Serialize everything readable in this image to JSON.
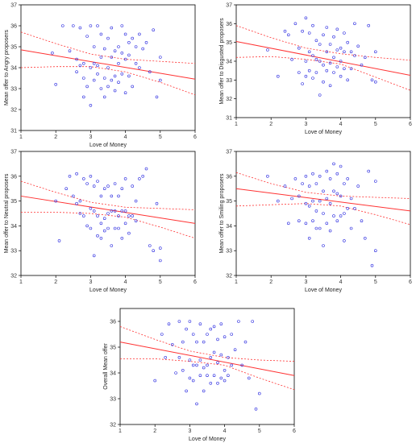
{
  "colors": {
    "points": "#2a2ae0",
    "fit_line": "#ff3333",
    "frame": "#000000",
    "background": "#ffffff"
  },
  "chart_data": [
    {
      "type": "scatter",
      "title": "",
      "xlabel": "Love of Money",
      "ylabel": "Mean offer to Angry proposers",
      "xlim": [
        1,
        6
      ],
      "ylim": [
        31,
        37
      ],
      "xticks": [
        "1",
        "2",
        "3",
        "4",
        "5",
        "6"
      ],
      "yticks": [
        "31",
        "32",
        "33",
        "34",
        "35",
        "36",
        "37"
      ],
      "grid": false,
      "fit": {
        "x": [
          1,
          6
        ],
        "y": [
          34.85,
          33.45
        ]
      },
      "ci_upper": {
        "x": [
          1,
          2,
          3,
          4,
          5,
          6
        ],
        "y": [
          35.7,
          35.15,
          34.65,
          34.4,
          34.3,
          34.2
        ]
      },
      "ci_lower": {
        "x": [
          1,
          2,
          3,
          4,
          5,
          6
        ],
        "y": [
          34.0,
          34.05,
          34.05,
          33.8,
          33.3,
          32.7
        ]
      },
      "points": {
        "x": [
          1.9,
          2.0,
          2.2,
          2.4,
          2.5,
          2.6,
          2.6,
          2.7,
          2.7,
          2.8,
          2.8,
          2.8,
          2.9,
          2.9,
          3.0,
          3.0,
          3.0,
          3.1,
          3.1,
          3.1,
          3.2,
          3.2,
          3.2,
          3.3,
          3.3,
          3.3,
          3.4,
          3.4,
          3.4,
          3.5,
          3.5,
          3.5,
          3.6,
          3.6,
          3.6,
          3.7,
          3.7,
          3.7,
          3.8,
          3.8,
          3.8,
          3.9,
          3.9,
          3.9,
          4.0,
          4.0,
          4.0,
          4.1,
          4.1,
          4.1,
          4.2,
          4.2,
          4.3,
          4.3,
          4.4,
          4.4,
          4.5,
          4.6,
          4.7,
          4.8,
          4.9,
          5.0,
          5.0
        ],
        "y": [
          34.7,
          33.2,
          36.0,
          34.8,
          36.0,
          34.4,
          33.8,
          35.9,
          34.1,
          32.6,
          33.5,
          34.2,
          35.5,
          33.1,
          36.0,
          34.0,
          32.2,
          35.0,
          34.2,
          33.4,
          36.0,
          33.7,
          34.1,
          35.6,
          33.0,
          34.5,
          34.9,
          33.5,
          32.6,
          35.4,
          34.0,
          33.1,
          35.9,
          34.5,
          33.4,
          34.8,
          33.6,
          32.9,
          35.0,
          34.2,
          33.3,
          36.0,
          34.7,
          33.7,
          35.6,
          34.4,
          32.8,
          35.2,
          33.6,
          34.6,
          35.4,
          33.1,
          35.0,
          34.2,
          35.6,
          34.0,
          34.9,
          35.2,
          33.8,
          35.8,
          32.6,
          33.4,
          34.5
        ]
      }
    },
    {
      "type": "scatter",
      "title": "",
      "xlabel": "Love of Money",
      "ylabel": "Mean offer to Disgusted proposers",
      "xlim": [
        1,
        6
      ],
      "ylim": [
        31,
        37
      ],
      "xticks": [
        "1",
        "2",
        "3",
        "4",
        "5",
        "6"
      ],
      "yticks": [
        "31",
        "32",
        "33",
        "34",
        "35",
        "36",
        "37"
      ],
      "grid": false,
      "fit": {
        "x": [
          1,
          6
        ],
        "y": [
          35.05,
          33.25
        ]
      },
      "ci_upper": {
        "x": [
          1,
          2,
          3,
          4,
          5,
          6
        ],
        "y": [
          35.9,
          35.25,
          34.7,
          34.4,
          34.2,
          34.05
        ]
      },
      "ci_lower": {
        "x": [
          1,
          2,
          3,
          4,
          5,
          6
        ],
        "y": [
          34.2,
          34.25,
          34.1,
          33.85,
          33.15,
          32.45
        ]
      },
      "points": {
        "x": [
          1.9,
          2.2,
          2.4,
          2.5,
          2.6,
          2.7,
          2.8,
          2.8,
          2.9,
          2.9,
          3.0,
          3.0,
          3.0,
          3.1,
          3.1,
          3.1,
          3.2,
          3.2,
          3.2,
          3.3,
          3.3,
          3.3,
          3.4,
          3.4,
          3.4,
          3.5,
          3.5,
          3.5,
          3.6,
          3.6,
          3.6,
          3.7,
          3.7,
          3.7,
          3.8,
          3.8,
          3.8,
          3.9,
          3.9,
          3.9,
          4.0,
          4.0,
          4.0,
          4.1,
          4.1,
          4.1,
          4.2,
          4.2,
          4.3,
          4.3,
          4.4,
          4.4,
          4.5,
          4.6,
          4.7,
          4.8,
          4.9,
          5.0,
          5.0
        ],
        "y": [
          34.6,
          33.2,
          35.6,
          35.4,
          34.1,
          36.0,
          33.4,
          34.7,
          35.6,
          32.8,
          36.3,
          34.0,
          33.2,
          35.5,
          34.5,
          33.5,
          35.9,
          34.3,
          33.1,
          35.1,
          34.1,
          33.4,
          34.9,
          34.0,
          32.2,
          35.4,
          33.8,
          32.9,
          35.8,
          34.5,
          33.5,
          34.9,
          33.9,
          32.7,
          35.3,
          34.2,
          33.4,
          35.7,
          34.6,
          33.7,
          34.7,
          34.0,
          33.2,
          35.5,
          33.6,
          34.5,
          35.0,
          33.0,
          34.5,
          33.6,
          36.0,
          34.3,
          34.8,
          33.8,
          34.2,
          35.9,
          33.0,
          32.9,
          34.5
        ]
      }
    },
    {
      "type": "scatter",
      "title": "",
      "xlabel": "Love of Money",
      "ylabel": "Mean offer to Neutral proposers",
      "xlim": [
        1,
        6
      ],
      "ylim": [
        32,
        37
      ],
      "xticks": [
        "1",
        "2",
        "3",
        "4",
        "5",
        "6"
      ],
      "yticks": [
        "32",
        "33",
        "34",
        "35",
        "36",
        "37"
      ],
      "grid": false,
      "fit": {
        "x": [
          1,
          6
        ],
        "y": [
          35.2,
          34.1
        ]
      },
      "ci_upper": {
        "x": [
          1,
          2,
          3,
          4,
          5,
          6
        ],
        "y": [
          35.8,
          35.35,
          34.95,
          34.75,
          34.7,
          34.65
        ]
      },
      "ci_lower": {
        "x": [
          1,
          2,
          3,
          4,
          5,
          6
        ],
        "y": [
          34.55,
          34.55,
          34.5,
          34.35,
          33.95,
          33.5
        ]
      },
      "points": {
        "x": [
          2.0,
          2.1,
          2.3,
          2.4,
          2.5,
          2.6,
          2.6,
          2.7,
          2.7,
          2.8,
          2.8,
          2.9,
          2.9,
          3.0,
          3.0,
          3.0,
          3.1,
          3.1,
          3.1,
          3.2,
          3.2,
          3.2,
          3.3,
          3.3,
          3.3,
          3.4,
          3.4,
          3.4,
          3.5,
          3.5,
          3.5,
          3.6,
          3.6,
          3.6,
          3.7,
          3.7,
          3.7,
          3.8,
          3.8,
          3.8,
          3.9,
          3.9,
          3.9,
          4.0,
          4.0,
          4.0,
          4.1,
          4.1,
          4.2,
          4.2,
          4.3,
          4.3,
          4.4,
          4.5,
          4.6,
          4.7,
          4.8,
          4.9,
          5.0,
          5.0
        ],
        "y": [
          35.0,
          33.4,
          35.5,
          36.0,
          35.2,
          36.1,
          34.9,
          35.0,
          34.5,
          35.9,
          34.4,
          35.7,
          34.0,
          36.0,
          34.7,
          33.9,
          35.6,
          34.6,
          32.8,
          35.8,
          34.4,
          33.6,
          35.2,
          34.1,
          33.5,
          35.5,
          34.3,
          33.8,
          35.6,
          34.5,
          33.9,
          35.2,
          34.6,
          33.2,
          35.7,
          34.6,
          33.9,
          35.2,
          34.4,
          33.9,
          35.5,
          34.6,
          33.5,
          35.9,
          34.6,
          34.1,
          34.4,
          33.7,
          35.6,
          34.4,
          35.0,
          34.2,
          35.9,
          36.0,
          36.3,
          33.2,
          33.0,
          34.9,
          32.6,
          33.1
        ]
      }
    },
    {
      "type": "scatter",
      "title": "",
      "xlabel": "Love of Money",
      "ylabel": "Mean offer to Smiling proposers",
      "xlim": [
        1,
        6
      ],
      "ylim": [
        32,
        37
      ],
      "xticks": [
        "1",
        "2",
        "3",
        "4",
        "5",
        "6"
      ],
      "yticks": [
        "32",
        "33",
        "34",
        "35",
        "36",
        "37"
      ],
      "grid": false,
      "fit": {
        "x": [
          1,
          6
        ],
        "y": [
          35.5,
          34.6
        ]
      },
      "ci_upper": {
        "x": [
          1,
          2,
          3,
          4,
          5,
          6
        ],
        "y": [
          36.15,
          35.7,
          35.35,
          35.2,
          35.15,
          35.1
        ]
      },
      "ci_lower": {
        "x": [
          1,
          2,
          3,
          4,
          5,
          6
        ],
        "y": [
          34.8,
          34.85,
          34.9,
          34.8,
          34.45,
          34.05
        ]
      },
      "points": {
        "x": [
          1.9,
          2.2,
          2.4,
          2.5,
          2.6,
          2.7,
          2.8,
          2.8,
          2.9,
          3.0,
          3.0,
          3.0,
          3.1,
          3.1,
          3.1,
          3.2,
          3.2,
          3.2,
          3.3,
          3.3,
          3.3,
          3.4,
          3.4,
          3.4,
          3.5,
          3.5,
          3.5,
          3.6,
          3.6,
          3.6,
          3.7,
          3.7,
          3.7,
          3.8,
          3.8,
          3.8,
          3.9,
          3.9,
          3.9,
          4.0,
          4.0,
          4.0,
          4.1,
          4.1,
          4.1,
          4.2,
          4.2,
          4.3,
          4.3,
          4.4,
          4.5,
          4.6,
          4.7,
          4.8,
          4.9,
          5.0,
          5.0
        ],
        "y": [
          36.0,
          35.0,
          35.6,
          34.1,
          35.1,
          35.9,
          34.2,
          35.2,
          35.7,
          36.0,
          34.9,
          34.1,
          35.6,
          34.8,
          33.5,
          36.1,
          35.0,
          34.2,
          35.7,
          34.6,
          33.9,
          36.0,
          35.0,
          33.9,
          35.4,
          34.5,
          33.2,
          36.2,
          35.1,
          34.1,
          35.9,
          34.9,
          33.8,
          36.5,
          35.4,
          34.4,
          36.1,
          35.3,
          34.2,
          36.4,
          35.2,
          34.4,
          35.7,
          34.5,
          33.4,
          35.9,
          34.7,
          35.1,
          33.9,
          34.7,
          35.6,
          34.2,
          33.5,
          36.2,
          32.4,
          33.0,
          35.8
        ]
      }
    },
    {
      "type": "scatter",
      "title": "",
      "xlabel": "Love of Money",
      "ylabel": "Overall Mean offer",
      "xlim": [
        1,
        6
      ],
      "ylim": [
        32,
        36.5
      ],
      "xticks": [
        "1",
        "2",
        "3",
        "4",
        "5",
        "6"
      ],
      "yticks": [
        "32",
        "33",
        "34",
        "35",
        "36"
      ],
      "grid": false,
      "fit": {
        "x": [
          1,
          6
        ],
        "y": [
          35.2,
          33.9
        ]
      },
      "ci_upper": {
        "x": [
          1,
          2,
          3,
          4,
          5,
          6
        ],
        "y": [
          35.8,
          35.3,
          34.85,
          34.6,
          34.5,
          34.45
        ]
      },
      "ci_lower": {
        "x": [
          1,
          2,
          3,
          4,
          5,
          6
        ],
        "y": [
          34.55,
          34.55,
          34.45,
          34.3,
          33.8,
          33.35
        ]
      },
      "points": {
        "x": [
          2.0,
          2.2,
          2.3,
          2.4,
          2.5,
          2.6,
          2.7,
          2.7,
          2.8,
          2.8,
          2.9,
          2.9,
          3.0,
          3.0,
          3.0,
          3.1,
          3.1,
          3.1,
          3.2,
          3.2,
          3.2,
          3.3,
          3.3,
          3.3,
          3.4,
          3.4,
          3.4,
          3.5,
          3.5,
          3.5,
          3.6,
          3.6,
          3.6,
          3.7,
          3.7,
          3.7,
          3.8,
          3.8,
          3.8,
          3.9,
          3.9,
          3.9,
          4.0,
          4.0,
          4.0,
          4.1,
          4.1,
          4.2,
          4.2,
          4.3,
          4.4,
          4.5,
          4.6,
          4.7,
          4.8,
          4.9,
          5.0
        ],
        "y": [
          33.7,
          35.5,
          34.6,
          35.9,
          35.1,
          34.0,
          36.0,
          34.6,
          35.2,
          34.1,
          35.7,
          33.3,
          36.0,
          34.5,
          33.8,
          35.5,
          34.3,
          33.7,
          35.2,
          34.3,
          32.8,
          35.9,
          34.5,
          33.9,
          35.2,
          34.2,
          33.3,
          35.5,
          34.3,
          33.9,
          35.7,
          34.6,
          33.6,
          35.8,
          34.8,
          33.9,
          35.3,
          34.4,
          33.6,
          35.9,
          34.7,
          33.8,
          35.4,
          34.1,
          33.7,
          34.6,
          33.9,
          35.5,
          34.3,
          34.9,
          36.0,
          34.3,
          35.2,
          33.8,
          36.0,
          32.6,
          33.2
        ]
      }
    }
  ]
}
